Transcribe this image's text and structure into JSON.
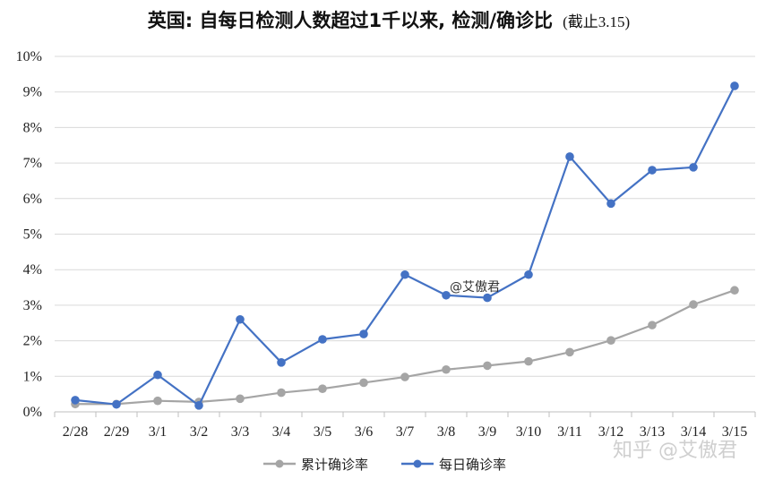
{
  "chart_data": {
    "type": "line",
    "title": "英国: 自每日检测人数超过1千以来, 检测/确诊比",
    "subtitle": "(截止3.15)",
    "categories": [
      "2/28",
      "2/29",
      "3/1",
      "3/2",
      "3/3",
      "3/4",
      "3/5",
      "3/6",
      "3/7",
      "3/8",
      "3/9",
      "3/10",
      "3/11",
      "3/12",
      "3/13",
      "3/14",
      "3/15"
    ],
    "series": [
      {
        "name": "累计确诊率",
        "color": "#a5a5a5",
        "values": [
          0.22,
          0.22,
          0.31,
          0.28,
          0.37,
          0.54,
          0.65,
          0.82,
          0.98,
          1.19,
          1.3,
          1.42,
          1.68,
          2.01,
          2.44,
          3.02,
          3.42
        ]
      },
      {
        "name": "每日确诊率",
        "color": "#4472c4",
        "values": [
          0.33,
          0.21,
          1.04,
          0.18,
          2.6,
          1.39,
          2.04,
          2.19,
          3.86,
          3.28,
          3.21,
          3.86,
          7.18,
          5.86,
          6.8,
          6.88,
          9.17
        ]
      }
    ],
    "ylim": [
      0,
      10
    ],
    "yticks": [
      0,
      1,
      2,
      3,
      4,
      5,
      6,
      7,
      8,
      9,
      10
    ],
    "ytick_labels": [
      "0%",
      "1%",
      "2%",
      "3%",
      "4%",
      "5%",
      "6%",
      "7%",
      "8%",
      "9%",
      "10%"
    ],
    "grid": true,
    "legend_position": "bottom",
    "xlabel": "",
    "ylabel": ""
  },
  "annotations": {
    "watermark_center": "@艾傲君",
    "watermark_corner": "知乎 @艾傲君"
  }
}
